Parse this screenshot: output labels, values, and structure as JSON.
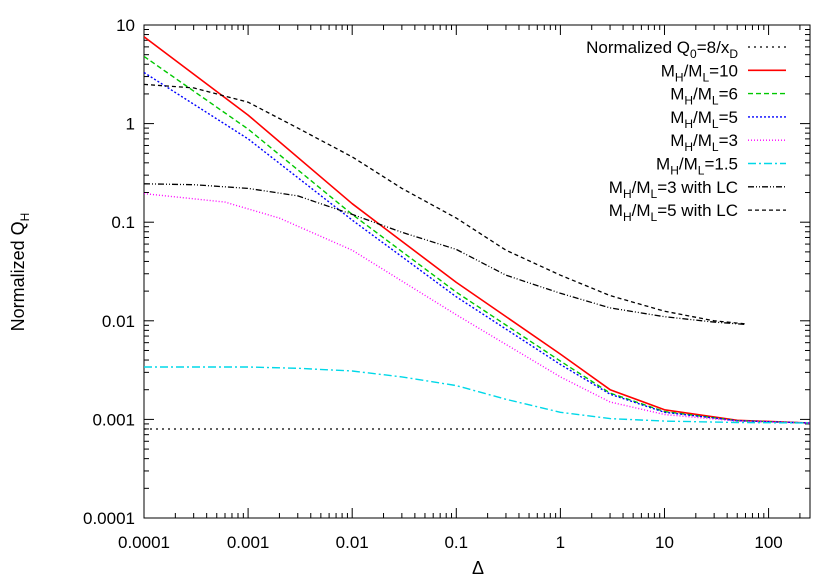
{
  "chart_data": {
    "type": "line",
    "x_scale": "log",
    "y_scale": "log",
    "xlim": [
      0.0001,
      250
    ],
    "ylim": [
      0.0001,
      10
    ],
    "grid": false,
    "legend_position": "top-right",
    "xlabel": "Δ",
    "ylabel": {
      "base": "Normalized Q",
      "sub": "H"
    },
    "x_ticks": [
      {
        "value": 0.0001,
        "label": "0.0001"
      },
      {
        "value": 0.001,
        "label": "0.001"
      },
      {
        "value": 0.01,
        "label": "0.01"
      },
      {
        "value": 0.1,
        "label": "0.1"
      },
      {
        "value": 1,
        "label": "1"
      },
      {
        "value": 10,
        "label": "10"
      },
      {
        "value": 100,
        "label": "100"
      }
    ],
    "y_ticks": [
      {
        "value": 0.0001,
        "label": "0.0001"
      },
      {
        "value": 0.001,
        "label": "0.001"
      },
      {
        "value": 0.01,
        "label": "0.01"
      },
      {
        "value": 0.1,
        "label": "0.1"
      },
      {
        "value": 1,
        "label": "1"
      },
      {
        "value": 10,
        "label": "10"
      }
    ],
    "series": [
      {
        "label_parts": [
          {
            "t": "Normalized Q"
          },
          {
            "t": "0",
            "sub": true
          },
          {
            "t": "=8/x"
          },
          {
            "t": "D",
            "sub": true
          }
        ],
        "color": "#000000",
        "dash": "2,4",
        "width": 1.2,
        "points": [
          [
            0.0001,
            0.0008
          ],
          [
            250,
            0.0008
          ]
        ]
      },
      {
        "label_parts": [
          {
            "t": "M"
          },
          {
            "t": "H",
            "sub": true
          },
          {
            "t": "/M"
          },
          {
            "t": "L",
            "sub": true
          },
          {
            "t": "=10"
          }
        ],
        "color": "#ff0000",
        "dash": "",
        "width": 1.6,
        "points": [
          [
            0.0001,
            7.6
          ],
          [
            0.001,
            1.22
          ],
          [
            0.01,
            0.154
          ],
          [
            0.1,
            0.0245
          ],
          [
            1,
            0.0046
          ],
          [
            3,
            0.002
          ],
          [
            10,
            0.00125
          ],
          [
            50,
            0.00098
          ],
          [
            250,
            0.00092
          ]
        ]
      },
      {
        "label_parts": [
          {
            "t": "M"
          },
          {
            "t": "H",
            "sub": true
          },
          {
            "t": "/M"
          },
          {
            "t": "L",
            "sub": true
          },
          {
            "t": "=6"
          }
        ],
        "color": "#00c800",
        "dash": "5,3",
        "width": 1.4,
        "points": [
          [
            0.0001,
            4.8
          ],
          [
            0.001,
            0.88
          ],
          [
            0.01,
            0.12
          ],
          [
            0.1,
            0.0195
          ],
          [
            1,
            0.0039
          ],
          [
            3,
            0.00185
          ],
          [
            10,
            0.0012
          ],
          [
            50,
            0.00097
          ],
          [
            250,
            0.00092
          ]
        ]
      },
      {
        "label_parts": [
          {
            "t": "M"
          },
          {
            "t": "H",
            "sub": true
          },
          {
            "t": "/M"
          },
          {
            "t": "L",
            "sub": true
          },
          {
            "t": "=5"
          }
        ],
        "color": "#0000ff",
        "dash": "2,2",
        "width": 1.4,
        "points": [
          [
            0.0001,
            3.3
          ],
          [
            0.001,
            0.7
          ],
          [
            0.01,
            0.105
          ],
          [
            0.1,
            0.0175
          ],
          [
            1,
            0.0036
          ],
          [
            3,
            0.0018
          ],
          [
            10,
            0.00118
          ],
          [
            50,
            0.00097
          ],
          [
            250,
            0.00092
          ]
        ]
      },
      {
        "label_parts": [
          {
            "t": "M"
          },
          {
            "t": "H",
            "sub": true
          },
          {
            "t": "/M"
          },
          {
            "t": "L",
            "sub": true
          },
          {
            "t": "=3"
          }
        ],
        "color": "#ff00ff",
        "dash": "1,2",
        "width": 1.4,
        "points": [
          [
            0.0001,
            0.195
          ],
          [
            0.0006,
            0.16
          ],
          [
            0.002,
            0.11
          ],
          [
            0.01,
            0.052
          ],
          [
            0.1,
            0.0115
          ],
          [
            1,
            0.0027
          ],
          [
            3,
            0.0015
          ],
          [
            10,
            0.00112
          ],
          [
            50,
            0.00096
          ],
          [
            250,
            0.00092
          ]
        ]
      },
      {
        "label_parts": [
          {
            "t": "M"
          },
          {
            "t": "H",
            "sub": true
          },
          {
            "t": "/M"
          },
          {
            "t": "L",
            "sub": true
          },
          {
            "t": "=1.5"
          }
        ],
        "color": "#00d8e8",
        "dash": "8,3,2,3",
        "width": 1.4,
        "points": [
          [
            0.0001,
            0.0034
          ],
          [
            0.001,
            0.0034
          ],
          [
            0.003,
            0.0033
          ],
          [
            0.01,
            0.0031
          ],
          [
            0.03,
            0.0027
          ],
          [
            0.1,
            0.0022
          ],
          [
            0.3,
            0.0016
          ],
          [
            1,
            0.00118
          ],
          [
            3,
            0.00102
          ],
          [
            10,
            0.00096
          ],
          [
            50,
            0.00093
          ],
          [
            250,
            0.00092
          ]
        ]
      },
      {
        "label_parts": [
          {
            "t": "M"
          },
          {
            "t": "H",
            "sub": true
          },
          {
            "t": "/M"
          },
          {
            "t": "L",
            "sub": true
          },
          {
            "t": "=3 with LC"
          }
        ],
        "color": "#000000",
        "dash": "6,2,1,2,1,2",
        "width": 1.3,
        "points": [
          [
            0.0001,
            0.245
          ],
          [
            0.0003,
            0.24
          ],
          [
            0.001,
            0.22
          ],
          [
            0.003,
            0.185
          ],
          [
            0.01,
            0.12
          ],
          [
            0.03,
            0.079
          ],
          [
            0.1,
            0.053
          ],
          [
            0.3,
            0.029
          ],
          [
            1,
            0.019
          ],
          [
            3,
            0.0135
          ],
          [
            10,
            0.011
          ],
          [
            30,
            0.0097
          ],
          [
            60,
            0.0092
          ]
        ]
      },
      {
        "label_parts": [
          {
            "t": "M"
          },
          {
            "t": "H",
            "sub": true
          },
          {
            "t": "/M"
          },
          {
            "t": "L",
            "sub": true
          },
          {
            "t": "=5 with LC"
          }
        ],
        "color": "#000000",
        "dash": "4,3",
        "width": 1.3,
        "points": [
          [
            0.0001,
            2.5
          ],
          [
            0.0003,
            2.3
          ],
          [
            0.001,
            1.65
          ],
          [
            0.003,
            0.9
          ],
          [
            0.01,
            0.46
          ],
          [
            0.03,
            0.22
          ],
          [
            0.1,
            0.11
          ],
          [
            0.3,
            0.052
          ],
          [
            1,
            0.029
          ],
          [
            3,
            0.018
          ],
          [
            10,
            0.0125
          ],
          [
            30,
            0.01
          ],
          [
            60,
            0.0093
          ]
        ]
      }
    ]
  }
}
